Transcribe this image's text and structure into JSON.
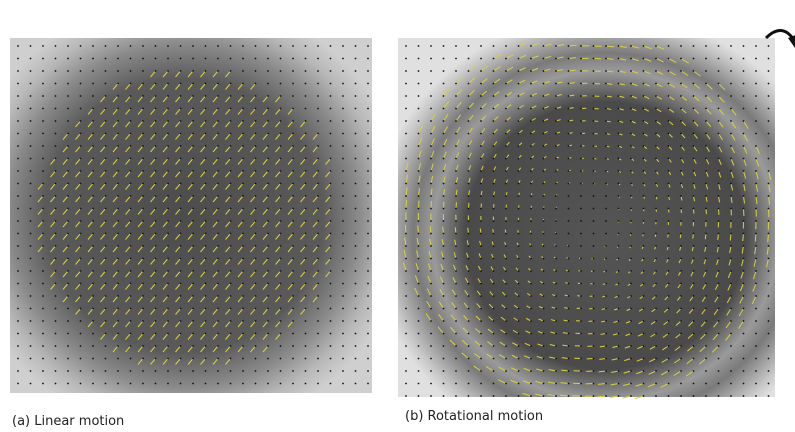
{
  "panels": [
    {
      "caption": "(a) Linear motion"
    },
    {
      "caption": "(b) Rotational motion"
    }
  ]
}
